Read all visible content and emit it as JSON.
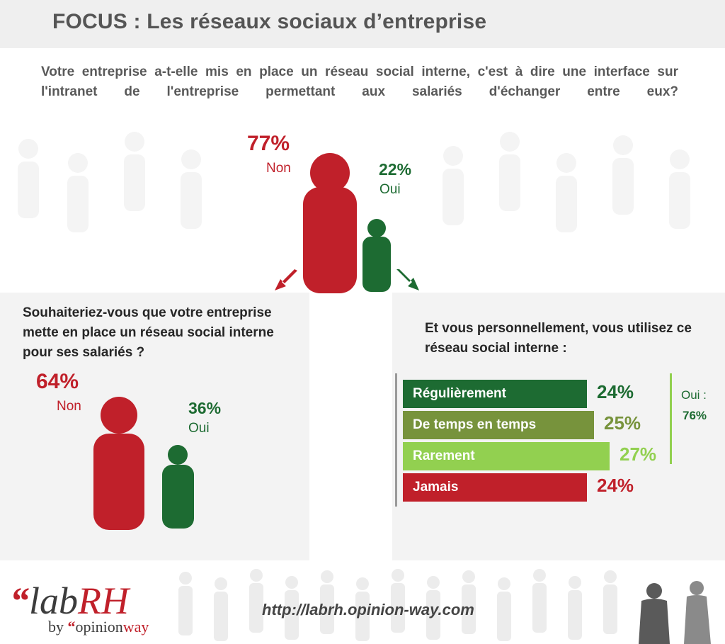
{
  "header": {
    "title": "FOCUS : Les réseaux sociaux d’entreprise"
  },
  "question_main": {
    "text": "Votre entreprise a-t-elle mis en place un réseau social interne, c'est à dire une interface sur l'intranet de l'entreprise permettant aux salariés d'échanger entre eux?"
  },
  "colors": {
    "red": "#c0202a",
    "green": "#1d6b32",
    "olive": "#77933c",
    "light_green": "#92d050",
    "panel_bg": "#f3f3f3"
  },
  "chart_data": [
    {
      "type": "pictogram",
      "title": "Votre entreprise a-t-elle mis en place un réseau social interne, c'est à dire une interface sur l'intranet de l'entreprise permettant aux salariés d'échanger entre eux?",
      "categories": [
        "Non",
        "Oui"
      ],
      "values": [
        77,
        22
      ],
      "value_labels": [
        "77%",
        "22%"
      ],
      "unit": "%"
    },
    {
      "type": "pictogram",
      "title": "Souhaiteriez-vous que votre entreprise mette en place un réseau social interne pour ses salariés ?",
      "categories": [
        "Non",
        "Oui"
      ],
      "values": [
        64,
        36
      ],
      "value_labels": [
        "64%",
        "36%"
      ],
      "unit": "%"
    },
    {
      "type": "bar",
      "orientation": "horizontal",
      "title": "Et vous personnellement, vous utilisez ce réseau social interne :",
      "categories": [
        "Régulièrement",
        "De temps en temps",
        "Rarement",
        "Jamais"
      ],
      "values": [
        24,
        25,
        27,
        24
      ],
      "value_labels": [
        "24%",
        "25%",
        "27%",
        "24%"
      ],
      "colors": [
        "#1d6b32",
        "#77933c",
        "#92d050",
        "#c0202a"
      ],
      "annotation": {
        "label": "Oui :",
        "value": "76%"
      },
      "unit": "%"
    }
  ],
  "footer": {
    "url": "http://labrh.opinion-way.com",
    "logo_text": "labRH",
    "logo_sub_text": "by opinionway"
  }
}
